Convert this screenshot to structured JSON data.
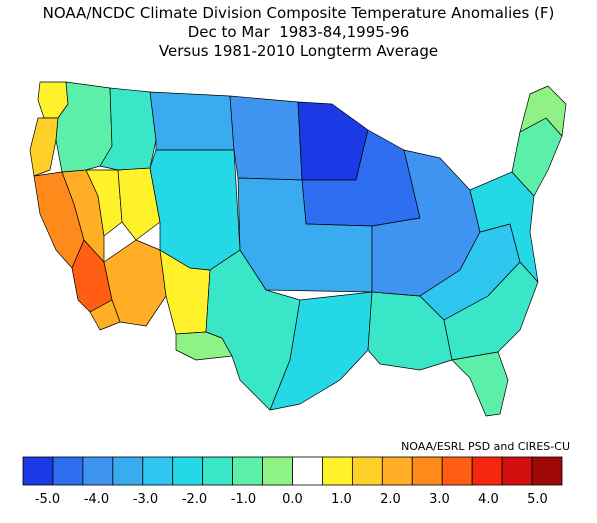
{
  "header": {
    "title": "NOAA/NCDC Climate Division Composite Temperature Anomalies (F)",
    "subtitle": "Dec to Mar  1983-84,1995-96",
    "baseline": "Versus 1981-2010 Longterm Average"
  },
  "credit": "NOAA/ESRL PSD and CIRES-CU",
  "map": {
    "region": "contiguous-us-climate-divisions",
    "anomaly_by_region_F": {
      "pacific-northwest-coast": 0.0,
      "oregon-california-coast": 0.5,
      "california-central": 1.7,
      "california-southern-desert": 2.2,
      "nevada-west": 1.2,
      "nevada-central": 0.0,
      "utah-southwest": 0.0,
      "arizona": 1.3,
      "arizona-southwest": 1.0,
      "new-mexico-west": 0.0,
      "new-mexico-south": -1.5,
      "idaho-washington-inland": -1.8,
      "montana-west": -2.3,
      "montana-east": -3.8,
      "wyoming-colorado": -2.8,
      "north-dakota": -4.3,
      "minnesota-north": -5.2,
      "wisconsin-iowa": -4.6,
      "great-plains-central": -3.6,
      "texas-west": -2.2,
      "texas-east": -2.6,
      "gulf-coast": -2.1,
      "ohio-valley": -4.3,
      "appalachia": -3.3,
      "southeast": -2.4,
      "florida": -1.7,
      "mid-atlantic": -3.0,
      "new-england": -2.0,
      "maine-north": -1.5
    }
  },
  "legend": {
    "colors": [
      "#1c39e6",
      "#2e6ef0",
      "#3f94f2",
      "#38acef",
      "#2fc6ef",
      "#25d8e6",
      "#39e6c7",
      "#5cefa9",
      "#8ef285",
      "#ffffff",
      "#fff22a",
      "#ffcf2a",
      "#ffae25",
      "#ff8a1c",
      "#ff5e14",
      "#f5280f",
      "#d40f0f",
      "#a00808"
    ],
    "tick_labels": [
      "-5.0",
      "-4.0",
      "-3.0",
      "-2.0",
      "-1.0",
      "0.0",
      "1.0",
      "2.0",
      "3.0",
      "4.0",
      "5.0"
    ],
    "tick_values": [
      -5.0,
      -4.0,
      -3.0,
      -2.0,
      -1.0,
      0.0,
      1.0,
      2.0,
      3.0,
      4.0,
      5.0
    ],
    "min": -5.5,
    "max": 5.5,
    "step": 0.5
  }
}
